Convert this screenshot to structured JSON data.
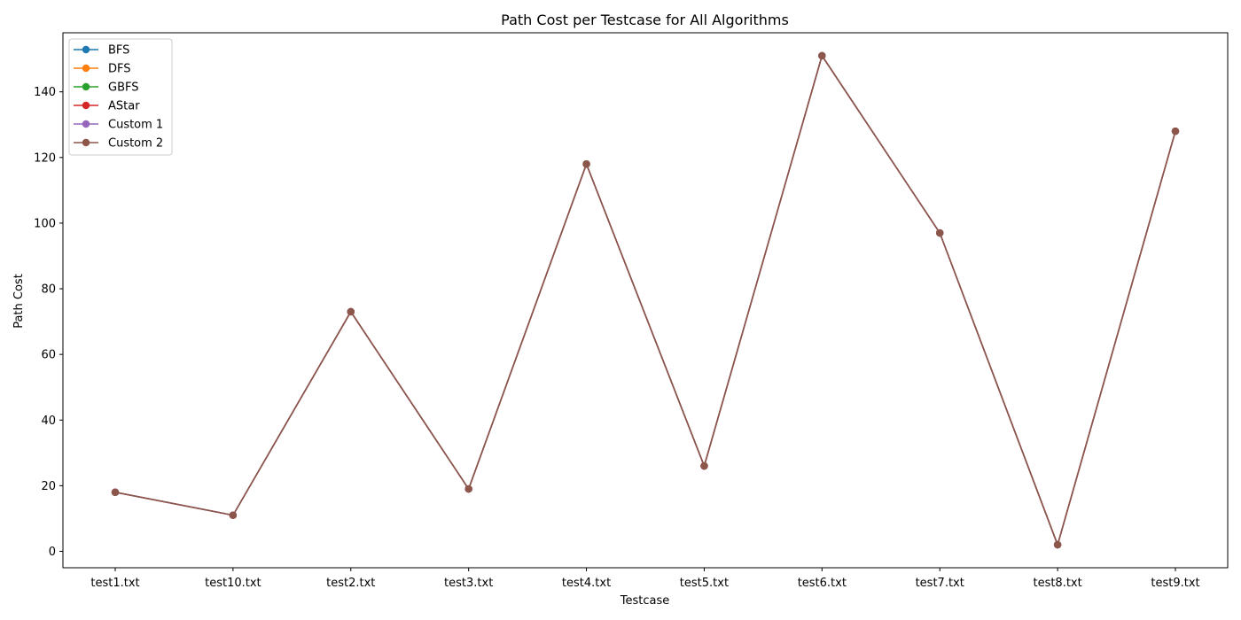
{
  "chart_data": {
    "type": "line",
    "title": "Path Cost per Testcase for All Algorithms",
    "xlabel": "Testcase",
    "ylabel": "Path Cost",
    "categories": [
      "test1.txt",
      "test10.txt",
      "test2.txt",
      "test3.txt",
      "test4.txt",
      "test5.txt",
      "test6.txt",
      "test7.txt",
      "test8.txt",
      "test9.txt"
    ],
    "ylim": [
      -5,
      158
    ],
    "yticks": [
      0,
      20,
      40,
      60,
      80,
      100,
      120,
      140
    ],
    "grid": false,
    "legend_position": "top-left",
    "series": [
      {
        "name": "BFS",
        "color": "#1f77b4",
        "values": [
          18,
          11,
          73,
          19,
          118,
          26,
          151,
          97,
          2,
          128
        ]
      },
      {
        "name": "DFS",
        "color": "#ff7f0e",
        "values": [
          18,
          11,
          73,
          19,
          118,
          26,
          151,
          97,
          2,
          128
        ]
      },
      {
        "name": "GBFS",
        "color": "#2ca02c",
        "values": [
          18,
          11,
          73,
          19,
          118,
          26,
          151,
          97,
          2,
          128
        ]
      },
      {
        "name": "AStar",
        "color": "#d62728",
        "values": [
          18,
          11,
          73,
          19,
          118,
          26,
          151,
          97,
          2,
          128
        ]
      },
      {
        "name": "Custom 1",
        "color": "#9467bd",
        "values": [
          18,
          11,
          73,
          19,
          118,
          26,
          151,
          97,
          2,
          128
        ]
      },
      {
        "name": "Custom 2",
        "color": "#8c564b",
        "values": [
          18,
          11,
          73,
          19,
          118,
          26,
          151,
          97,
          2,
          128
        ]
      }
    ]
  }
}
